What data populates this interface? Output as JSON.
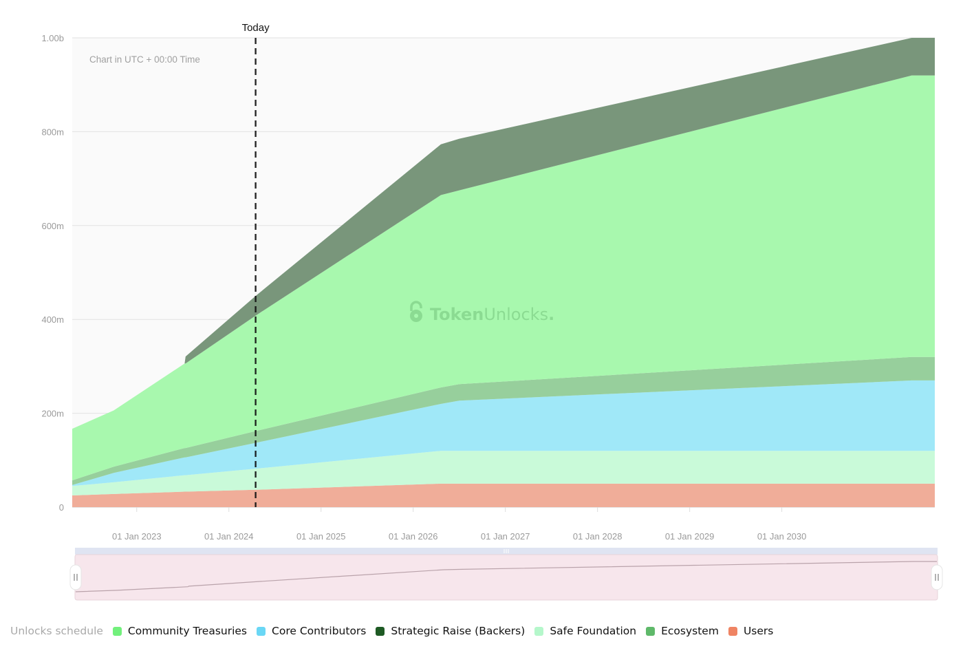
{
  "chart_data": {
    "type": "area",
    "stacked": true,
    "title": "Unlocks schedule",
    "note": "Chart in UTC + 00:00 Time",
    "today_label": "Today",
    "today": 2024.29,
    "watermark": "TokenUnlocks.",
    "watermark_parts": [
      "Token",
      "Unlocks",
      "."
    ],
    "xlim": [
      2022.3,
      2031.66
    ],
    "ylim": [
      0,
      1000
    ],
    "y_unit": "millions",
    "yticks": [
      0,
      200,
      400,
      600,
      800,
      1000
    ],
    "ytick_labels": [
      "0",
      "200m",
      "400m",
      "600m",
      "800m",
      "1.00b"
    ],
    "xticks": [
      2023,
      2024,
      2025,
      2026,
      2027,
      2028,
      2029,
      2030
    ],
    "xtick_labels": [
      "01 Jan 2023",
      "01 Jan 2024",
      "01 Jan 2025",
      "01 Jan 2026",
      "01 Jan 2027",
      "01 Jan 2028",
      "01 Jan 2029",
      "01 Jan 2030"
    ],
    "grid": true,
    "legend_position": "bottom-left",
    "x": [
      2022.3,
      2022.75,
      2023.52,
      2023.53,
      2024.29,
      2026.3,
      2026.5,
      2031.41,
      2031.66
    ],
    "series": [
      {
        "name": "Users",
        "color": "#f0ad99",
        "legend_color": "#ef8463",
        "values": [
          25,
          28,
          33,
          33,
          37,
          50,
          50,
          50,
          50
        ]
      },
      {
        "name": "Safe Foundation",
        "color": "#c9fad9",
        "legend_color": "#b5f7cb",
        "values": [
          20,
          25,
          35,
          35,
          45,
          70,
          70,
          70,
          70
        ]
      },
      {
        "name": "Core Contributors",
        "color": "#a0e8f8",
        "legend_color": "#6ad7f5",
        "values": [
          2,
          20,
          38,
          38,
          55,
          100,
          107,
          150,
          150
        ]
      },
      {
        "name": "Ecosystem",
        "color": "#97cf9c",
        "legend_color": "#5fb96a",
        "values": [
          10,
          13,
          20,
          20,
          25,
          35,
          35,
          50,
          50
        ]
      },
      {
        "name": "Community Treasuries",
        "color": "#a8f8ae",
        "legend_color": "#72f07c",
        "values": [
          110,
          120,
          180,
          180,
          246,
          410,
          413,
          600,
          600
        ]
      },
      {
        "name": "Strategic Raise (Backers)",
        "color": "#79967b",
        "legend_color": "#1e5a24",
        "values": [
          0,
          0,
          0,
          15,
          42,
          108,
          110,
          80,
          80
        ]
      }
    ],
    "legend_order": [
      "Community Treasuries",
      "Core Contributors",
      "Strategic Raise (Backers)",
      "Safe Foundation",
      "Ecosystem",
      "Users"
    ],
    "navigator": {
      "range": [
        0,
        1
      ],
      "line_color": "#b9a2aa",
      "fill": "#f7e6ec",
      "bar": "#dfe4f2"
    }
  }
}
